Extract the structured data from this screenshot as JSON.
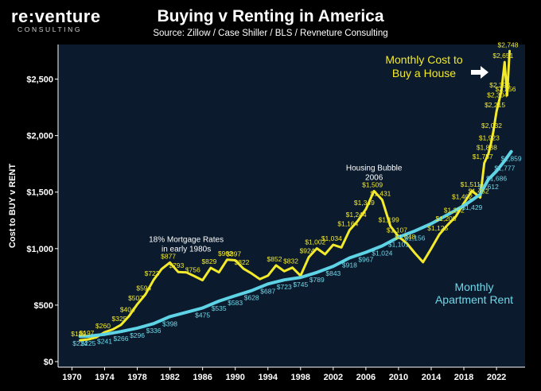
{
  "header": {
    "logo_main": "re:venture",
    "logo_sub": "CONSULTING"
  },
  "colors": {
    "background": "#000000",
    "plot_background": "#0b1a2c",
    "buy_line": "#f2ea2a",
    "rent_line": "#5fd3e6",
    "buy_label": "#f2ea2a",
    "rent_label": "#6fd9ea"
  },
  "chart_data": {
    "type": "line",
    "title": "Buying v Renting in America",
    "subtitle": "Source: Zillow / Case Shiller / BLS / Revneture Consulting",
    "ylabel": "Cost to BUY v RENT",
    "xlabel": "",
    "xlim": [
      1968.3,
      2025.5
    ],
    "ylim": [
      0,
      2750
    ],
    "x_ticks": [
      "1970",
      "1974",
      "1978",
      "1982",
      "1986",
      "1990",
      "1994",
      "1998",
      "2002",
      "2006",
      "2010",
      "2014",
      "2018",
      "2022"
    ],
    "y_ticks": [
      "$0",
      "$500",
      "$1,000",
      "$1,500",
      "$2,000",
      "$2,500"
    ],
    "grid": false,
    "series": [
      {
        "name": "Monthly Cost to Buy a House",
        "name_lines": [
          "Monthly Cost to",
          "Buy a House"
        ],
        "color": "#f2ea2a",
        "points": [
          [
            1971,
            189
          ],
          [
            1972,
            197
          ],
          [
            1973,
            215
          ],
          [
            1974,
            260
          ],
          [
            1975,
            285
          ],
          [
            1976,
            325
          ],
          [
            1977,
            404
          ],
          [
            1978,
            507
          ],
          [
            1979,
            594
          ],
          [
            1980,
            723
          ],
          [
            1981,
            820
          ],
          [
            1982,
            877
          ],
          [
            1983,
            793
          ],
          [
            1984,
            790
          ],
          [
            1985,
            756
          ],
          [
            1986,
            720
          ],
          [
            1987,
            829
          ],
          [
            1988,
            790
          ],
          [
            1989,
            902
          ],
          [
            1990,
            897
          ],
          [
            1991,
            822
          ],
          [
            1992,
            780
          ],
          [
            1993,
            730
          ],
          [
            1994,
            760
          ],
          [
            1995,
            852
          ],
          [
            1996,
            800
          ],
          [
            1997,
            832
          ],
          [
            1998,
            760
          ],
          [
            1999,
            924
          ],
          [
            2000,
            1002
          ],
          [
            2001,
            950
          ],
          [
            2002,
            1034
          ],
          [
            2003,
            1010
          ],
          [
            2004,
            1164
          ],
          [
            2005,
            1244
          ],
          [
            2006,
            1349
          ],
          [
            2007,
            1509
          ],
          [
            2008,
            1431
          ],
          [
            2009,
            1199
          ],
          [
            2010,
            1107
          ],
          [
            2011,
            1048
          ],
          [
            2012,
            960
          ],
          [
            2013,
            880
          ],
          [
            2014,
            1000
          ],
          [
            2015,
            1125
          ],
          [
            2016,
            1208
          ],
          [
            2017,
            1282
          ],
          [
            2018,
            1402
          ],
          [
            2019,
            1511
          ],
          [
            2020,
            1452
          ],
          [
            2020.5,
            1757
          ],
          [
            2021,
            1838
          ],
          [
            2021.3,
            1923
          ],
          [
            2021.6,
            2032
          ],
          [
            2022,
            2215
          ],
          [
            2022.3,
            2304
          ],
          [
            2022.6,
            2393
          ],
          [
            2023,
            2651
          ],
          [
            2023.3,
            2356
          ],
          [
            2023.6,
            2748
          ]
        ],
        "labels": [
          [
            1971,
            189,
            "$189"
          ],
          [
            1972,
            197,
            "$197"
          ],
          [
            1974,
            260,
            "$260"
          ],
          [
            1976,
            325,
            "$325"
          ],
          [
            1977,
            404,
            "$404"
          ],
          [
            1978,
            507,
            "$507"
          ],
          [
            1979,
            594,
            "$594"
          ],
          [
            1980,
            723,
            "$723"
          ],
          [
            1982,
            877,
            "$877"
          ],
          [
            1983,
            793,
            "$793"
          ],
          [
            1985,
            756,
            "$756"
          ],
          [
            1987,
            829,
            "$829"
          ],
          [
            1989,
            902,
            "$902"
          ],
          [
            1990,
            897,
            "$897"
          ],
          [
            1991,
            822,
            "$822"
          ],
          [
            1995,
            852,
            "$852"
          ],
          [
            1997,
            832,
            "$832"
          ],
          [
            1999,
            924,
            "$924"
          ],
          [
            2000,
            1002,
            "$1,002"
          ],
          [
            2002,
            1034,
            "$1,034"
          ],
          [
            2004,
            1164,
            "$1,164"
          ],
          [
            2005,
            1244,
            "$1,244"
          ],
          [
            2006,
            1349,
            "$1,349"
          ],
          [
            2007,
            1509,
            "$1,509"
          ],
          [
            2008,
            1431,
            "$1,431"
          ],
          [
            2009,
            1199,
            "$1,199"
          ],
          [
            2010,
            1107,
            "$1,107"
          ],
          [
            2011,
            1048,
            "$1,048"
          ],
          [
            2015,
            1125,
            "$1,125"
          ],
          [
            2016,
            1208,
            "$1,208"
          ],
          [
            2017,
            1282,
            "$1,282"
          ],
          [
            2018,
            1402,
            "$1,402"
          ],
          [
            2019,
            1511,
            "$1,511"
          ],
          [
            2020,
            1452,
            "$1,452"
          ],
          [
            2020.5,
            1757,
            "$1,757"
          ],
          [
            2021,
            1838,
            "$1,838"
          ],
          [
            2021.3,
            1923,
            "$1,923"
          ],
          [
            2021.6,
            2032,
            "$2,032"
          ],
          [
            2022,
            2215,
            "$2,215"
          ],
          [
            2022.3,
            2304,
            "$2,304"
          ],
          [
            2022.6,
            2393,
            "$2,393"
          ],
          [
            2023,
            2651,
            "$2,651"
          ],
          [
            2023.3,
            2356,
            "$2,356"
          ],
          [
            2023.6,
            2748,
            "$2,748"
          ]
        ]
      },
      {
        "name": "Monthly Apartment Rent",
        "name_lines": [
          "Monthly",
          "Apartment Rent"
        ],
        "color": "#5fd3e6",
        "points": [
          [
            1971,
            224
          ],
          [
            1972,
            225
          ],
          [
            1974,
            241
          ],
          [
            1976,
            266
          ],
          [
            1978,
            296
          ],
          [
            1980,
            336
          ],
          [
            1982,
            398
          ],
          [
            1986,
            475
          ],
          [
            1988,
            535
          ],
          [
            1990,
            583
          ],
          [
            1992,
            628
          ],
          [
            1994,
            687
          ],
          [
            1996,
            723
          ],
          [
            1998,
            745
          ],
          [
            2000,
            789
          ],
          [
            2002,
            843
          ],
          [
            2004,
            918
          ],
          [
            2006,
            967
          ],
          [
            2008,
            1024
          ],
          [
            2010,
            1101
          ],
          [
            2012,
            1156
          ],
          [
            2014,
            1220
          ],
          [
            2016,
            1300
          ],
          [
            2018,
            1380
          ],
          [
            2019,
            1429
          ],
          [
            2020,
            1480
          ],
          [
            2021,
            1612
          ],
          [
            2022,
            1686
          ],
          [
            2023,
            1777
          ],
          [
            2023.8,
            1859
          ]
        ],
        "labels": [
          [
            1971,
            224,
            "$224"
          ],
          [
            1972,
            225,
            "$225"
          ],
          [
            1974,
            241,
            "$241"
          ],
          [
            1976,
            266,
            "$266"
          ],
          [
            1978,
            296,
            "$296"
          ],
          [
            1980,
            336,
            "$336"
          ],
          [
            1982,
            398,
            "$398"
          ],
          [
            1986,
            475,
            "$475"
          ],
          [
            1988,
            535,
            "$535"
          ],
          [
            1990,
            583,
            "$583"
          ],
          [
            1992,
            628,
            "$628"
          ],
          [
            1994,
            687,
            "$687"
          ],
          [
            1996,
            723,
            "$723"
          ],
          [
            1998,
            745,
            "$745"
          ],
          [
            2000,
            789,
            "$789"
          ],
          [
            2002,
            843,
            "$843"
          ],
          [
            2004,
            918,
            "$918"
          ],
          [
            2006,
            967,
            "$967"
          ],
          [
            2008,
            1024,
            "$1,024"
          ],
          [
            2010,
            1101,
            "$1,101"
          ],
          [
            2012,
            1156,
            "$1,156"
          ],
          [
            2019,
            1429,
            "$1,429"
          ],
          [
            2021,
            1612,
            "$1,612"
          ],
          [
            2022,
            1686,
            "$1,686"
          ],
          [
            2023,
            1777,
            "$1,777"
          ],
          [
            2023.8,
            1859,
            "$1,859"
          ]
        ]
      }
    ],
    "annotations": [
      {
        "x": 1984,
        "y": 1060,
        "lines": [
          "18% Mortgage Rates",
          "in early 1980s"
        ]
      },
      {
        "x": 2007,
        "y": 1690,
        "lines": [
          "Housing Bubble",
          "2006"
        ]
      }
    ]
  }
}
